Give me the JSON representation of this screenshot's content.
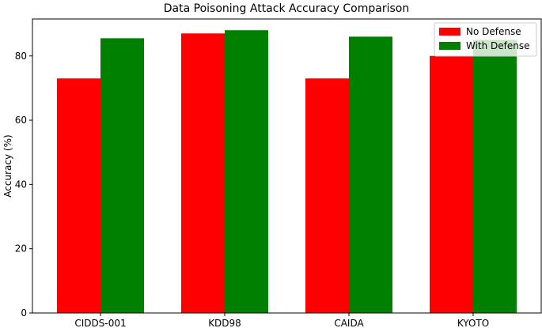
{
  "chart_data": {
    "type": "bar",
    "title": "Data Poisoning Attack Accuracy Comparison",
    "xlabel": "",
    "ylabel": "Accuracy (%)",
    "categories": [
      "CIDDS-001",
      "KDD98",
      "CAIDA",
      "KYOTO"
    ],
    "series": [
      {
        "name": "No Defense",
        "color": "#ff0000",
        "values": [
          73,
          87,
          73,
          80
        ]
      },
      {
        "name": "With Defense",
        "color": "#008000",
        "values": [
          85.5,
          88,
          86,
          85
        ]
      }
    ],
    "ylim": [
      0,
      91.5
    ],
    "yticks": [
      0,
      20,
      40,
      60,
      80
    ],
    "grid": false,
    "legend_position": "top-right"
  }
}
